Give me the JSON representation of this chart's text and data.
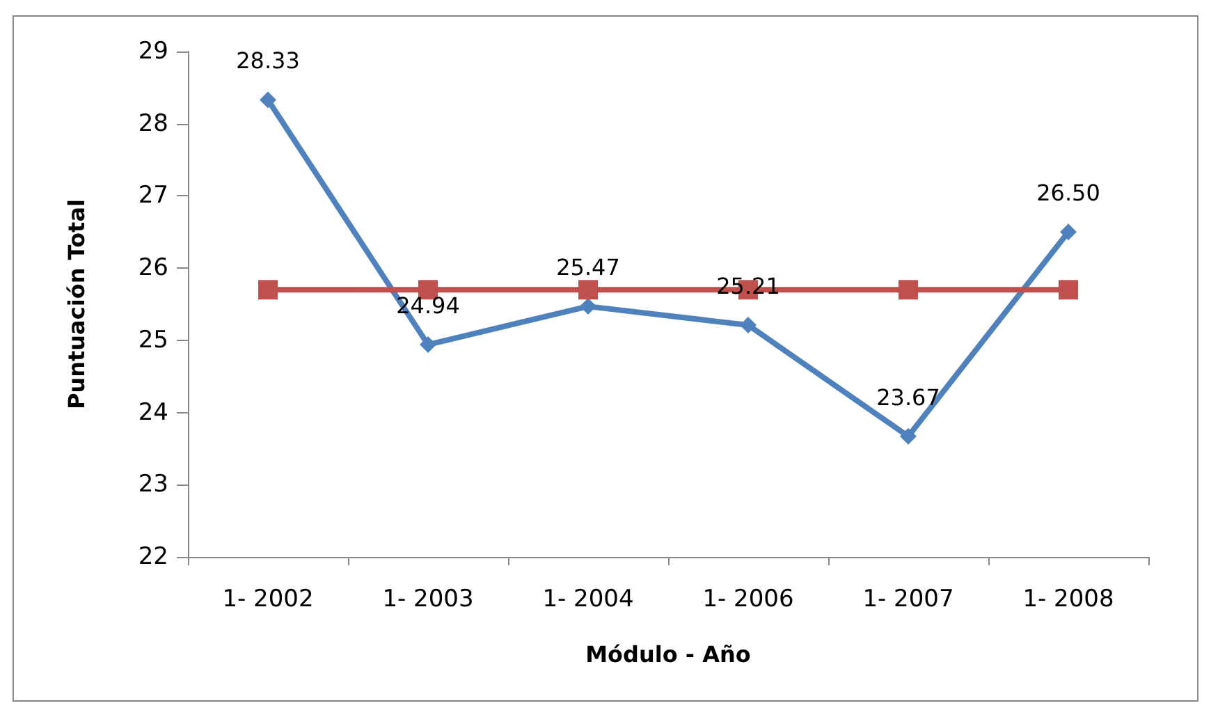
{
  "chart_data": {
    "type": "line",
    "xlabel": "Módulo - Año",
    "ylabel": "Puntuación Total",
    "categories": [
      "1- 2002",
      "1- 2003",
      "1- 2004",
      "1- 2006",
      "1- 2007",
      "1- 2008"
    ],
    "series": [
      {
        "color": "#4f81bd",
        "marker": "diamond",
        "values": [
          28.33,
          24.94,
          25.47,
          25.21,
          23.67,
          26.5
        ],
        "value_labels": [
          "28.33",
          "24.94",
          "25.47",
          "25.21",
          "23.67",
          "26.50"
        ]
      },
      {
        "color": "#c0504d",
        "marker": "square",
        "values": [
          25.7,
          25.7,
          25.7,
          25.7,
          25.7,
          25.7
        ]
      }
    ],
    "ylim": [
      22,
      29
    ],
    "yticks": [
      22,
      23,
      24,
      25,
      26,
      27,
      28,
      29
    ],
    "line_style": "solid"
  }
}
